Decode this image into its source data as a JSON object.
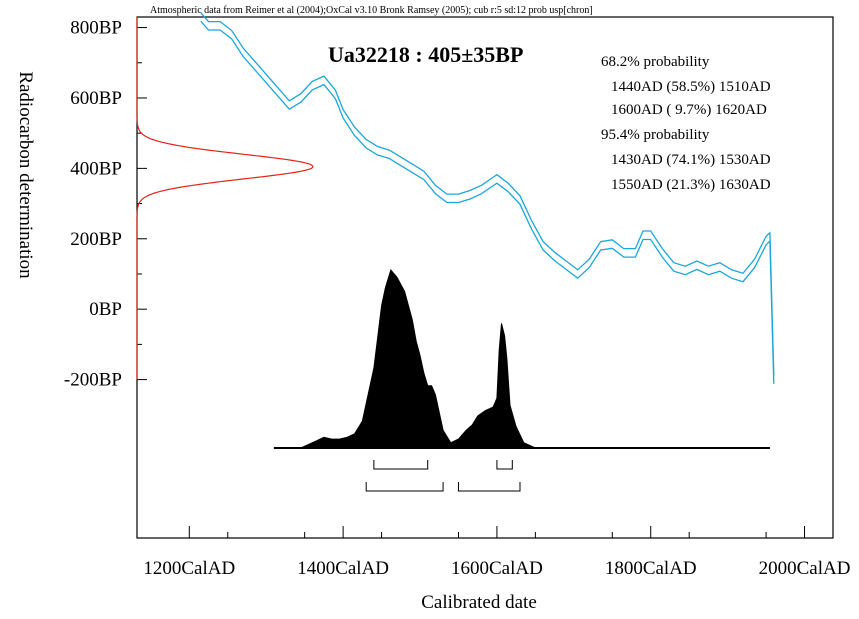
{
  "header_text": "Atmospheric data from Reimer et al (2004);OxCal v3.10 Bronk Ramsey (2005); cub r:5 sd:12 prob usp[chron]",
  "sample_label": "Ua32218 : 405±35BP",
  "probability_text": [
    "68.2% probability",
    "1440AD (58.5%) 1510AD",
    "1600AD ( 9.7%) 1620AD",
    "95.4% probability",
    "1430AD (74.1%) 1530AD",
    "1550AD (21.3%) 1630AD"
  ],
  "colors": {
    "calibration_curve": "#1aa7d8",
    "radiocarbon_gaussian": "#e0261b",
    "posterior": "#000000"
  },
  "chart_data": {
    "type": "area",
    "xlabel": "Calibrated date",
    "ylabel": "Radiocarbon determination",
    "x_ticks": [
      {
        "value": 1200,
        "label": "1200CalAD"
      },
      {
        "value": 1400,
        "label": "1400CalAD"
      },
      {
        "value": 1600,
        "label": "1600CalAD"
      },
      {
        "value": 1800,
        "label": "1800CalAD"
      },
      {
        "value": 2000,
        "label": "2000CalAD"
      }
    ],
    "y_ticks": [
      {
        "value": 800,
        "label": "800BP"
      },
      {
        "value": 600,
        "label": "600BP"
      },
      {
        "value": 400,
        "label": "400BP"
      },
      {
        "value": 200,
        "label": "200BP"
      },
      {
        "value": 0,
        "label": "0BP"
      },
      {
        "value": -200,
        "label": "-200BP"
      }
    ],
    "xlim": [
      1132,
      2037
    ],
    "ylim": [
      -650,
      830
    ],
    "radiocarbon": {
      "mean": 405,
      "sd": 35
    },
    "calibration_curve": {
      "name": "IntCal04",
      "x": [
        1215,
        1225,
        1240,
        1255,
        1270,
        1290,
        1310,
        1330,
        1345,
        1360,
        1375,
        1390,
        1400,
        1415,
        1430,
        1445,
        1460,
        1475,
        1490,
        1505,
        1520,
        1535,
        1550,
        1565,
        1580,
        1590,
        1600,
        1615,
        1630,
        1645,
        1660,
        1675,
        1690,
        1705,
        1720,
        1735,
        1750,
        1765,
        1780,
        1790,
        1800,
        1815,
        1830,
        1845,
        1860,
        1875,
        1890,
        1905,
        1920,
        1935,
        1950,
        1955,
        1960
      ],
      "y": [
        830,
        805,
        805,
        780,
        730,
        680,
        630,
        580,
        600,
        635,
        650,
        610,
        555,
        505,
        470,
        450,
        440,
        420,
        400,
        380,
        340,
        315,
        315,
        325,
        340,
        355,
        370,
        345,
        310,
        240,
        180,
        150,
        125,
        100,
        130,
        180,
        185,
        160,
        160,
        210,
        210,
        160,
        120,
        110,
        125,
        110,
        120,
        100,
        90,
        130,
        195,
        205,
        -200
      ],
      "band_halfwidth": 12
    },
    "posterior": {
      "x": [
        1310,
        1345,
        1355,
        1365,
        1375,
        1385,
        1395,
        1405,
        1415,
        1425,
        1440,
        1450,
        1455,
        1462,
        1470,
        1480,
        1490,
        1495,
        1500,
        1505,
        1510,
        1515,
        1520,
        1530,
        1540,
        1550,
        1560,
        1568,
        1575,
        1585,
        1595,
        1600,
        1603,
        1606,
        1610,
        1613,
        1617,
        1625,
        1635,
        1650,
        1955
      ],
      "y": [
        0,
        0,
        0.02,
        0.04,
        0.06,
        0.05,
        0.05,
        0.06,
        0.08,
        0.15,
        0.45,
        0.8,
        0.9,
        1.0,
        0.96,
        0.88,
        0.72,
        0.6,
        0.52,
        0.42,
        0.35,
        0.35,
        0.3,
        0.1,
        0.03,
        0.05,
        0.1,
        0.13,
        0.18,
        0.21,
        0.23,
        0.28,
        0.55,
        0.7,
        0.63,
        0.5,
        0.24,
        0.12,
        0.03,
        0,
        0
      ]
    },
    "ranges_68": [
      [
        1440,
        1510
      ],
      [
        1600,
        1620
      ]
    ],
    "ranges_95": [
      [
        1430,
        1530
      ],
      [
        1550,
        1630
      ]
    ]
  }
}
